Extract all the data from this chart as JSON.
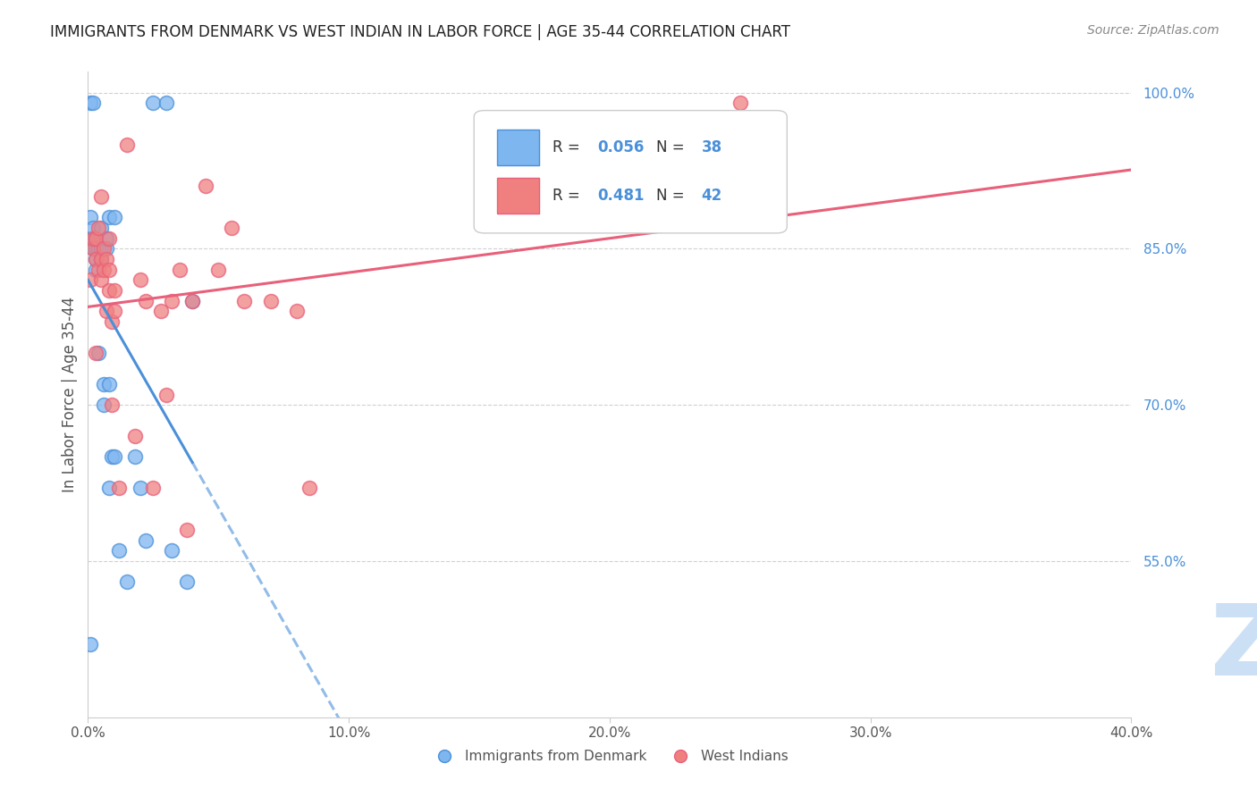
{
  "title": "IMMIGRANTS FROM DENMARK VS WEST INDIAN IN LABOR FORCE | AGE 35-44 CORRELATION CHART",
  "source": "Source: ZipAtlas.com",
  "ylabel_label": "In Labor Force | Age 35-44",
  "ytick_labels": [
    "100.0%",
    "85.0%",
    "70.0%",
    "55.0%"
  ],
  "ytick_values": [
    1.0,
    0.85,
    0.7,
    0.55
  ],
  "xtick_labels": [
    "0.0%",
    "10.0%",
    "20.0%",
    "30.0%",
    "40.0%"
  ],
  "xtick_values": [
    0.0,
    0.1,
    0.2,
    0.3,
    0.4
  ],
  "denmark_color": "#7eb6f0",
  "west_indian_color": "#f08080",
  "denmark_line_color": "#4a90d9",
  "west_indian_line_color": "#e8607a",
  "watermark_zip_color": "#cce0f5",
  "watermark_atlas_color": "#b8d0ea",
  "background_color": "#ffffff",
  "denmark_x": [
    0.001,
    0.001,
    0.001,
    0.001,
    0.002,
    0.002,
    0.002,
    0.002,
    0.003,
    0.003,
    0.003,
    0.003,
    0.003,
    0.004,
    0.004,
    0.005,
    0.005,
    0.005,
    0.006,
    0.006,
    0.007,
    0.007,
    0.008,
    0.008,
    0.008,
    0.009,
    0.01,
    0.01,
    0.012,
    0.015,
    0.018,
    0.02,
    0.022,
    0.025,
    0.03,
    0.032,
    0.038,
    0.04
  ],
  "denmark_y": [
    0.47,
    0.86,
    0.88,
    0.99,
    0.85,
    0.86,
    0.87,
    0.99,
    0.83,
    0.84,
    0.85,
    0.85,
    0.86,
    0.75,
    0.85,
    0.84,
    0.85,
    0.87,
    0.7,
    0.72,
    0.85,
    0.86,
    0.62,
    0.72,
    0.88,
    0.65,
    0.65,
    0.88,
    0.56,
    0.53,
    0.65,
    0.62,
    0.57,
    0.99,
    0.99,
    0.56,
    0.53,
    0.8
  ],
  "west_indian_x": [
    0.001,
    0.002,
    0.002,
    0.003,
    0.003,
    0.003,
    0.004,
    0.004,
    0.005,
    0.005,
    0.005,
    0.006,
    0.006,
    0.007,
    0.007,
    0.008,
    0.008,
    0.008,
    0.009,
    0.009,
    0.01,
    0.01,
    0.012,
    0.015,
    0.018,
    0.02,
    0.022,
    0.025,
    0.028,
    0.03,
    0.032,
    0.035,
    0.038,
    0.04,
    0.045,
    0.05,
    0.055,
    0.06,
    0.07,
    0.08,
    0.085,
    0.25
  ],
  "west_indian_y": [
    0.82,
    0.85,
    0.86,
    0.75,
    0.84,
    0.86,
    0.83,
    0.87,
    0.82,
    0.84,
    0.9,
    0.83,
    0.85,
    0.79,
    0.84,
    0.81,
    0.83,
    0.86,
    0.7,
    0.78,
    0.79,
    0.81,
    0.62,
    0.95,
    0.67,
    0.82,
    0.8,
    0.62,
    0.79,
    0.71,
    0.8,
    0.83,
    0.58,
    0.8,
    0.91,
    0.83,
    0.87,
    0.8,
    0.8,
    0.79,
    0.62,
    0.99
  ],
  "xlim": [
    0.0,
    0.4
  ],
  "ylim": [
    0.4,
    1.02
  ]
}
